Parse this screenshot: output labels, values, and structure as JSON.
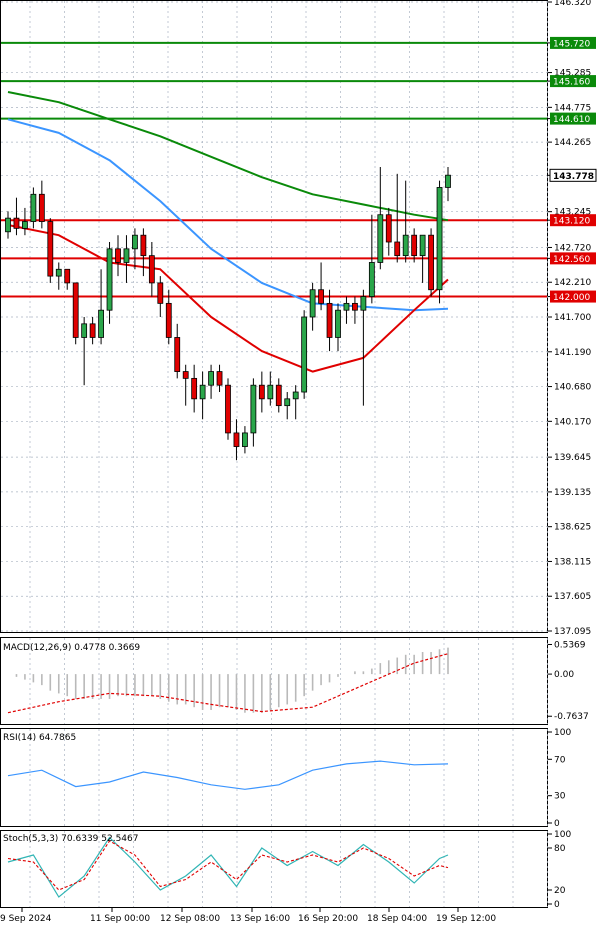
{
  "chart_data": {
    "type": "candlestick",
    "price_axis": {
      "ylim": [
        137.095,
        146.32
      ],
      "ticks": [
        "146.320",
        "145.720",
        "145.285",
        "145.160",
        "144.775",
        "144.610",
        "144.265",
        "143.778",
        "143.245",
        "143.120",
        "142.720",
        "142.560",
        "142.210",
        "142.000",
        "141.700",
        "141.190",
        "140.680",
        "140.170",
        "139.645",
        "139.135",
        "138.625",
        "138.115",
        "137.605",
        "137.095"
      ]
    },
    "time_labels": [
      "9 Sep 2024",
      "11 Sep 00:00",
      "12 Sep 08:00",
      "13 Sep 16:00",
      "16 Sep 20:00",
      "18 Sep 04:00",
      "19 Sep 12:00"
    ],
    "levels": [
      {
        "value": 145.72,
        "label": "145.720",
        "color": "#0a8a0a"
      },
      {
        "value": 145.16,
        "label": "145.160",
        "color": "#0a8a0a"
      },
      {
        "value": 144.61,
        "label": "144.610",
        "color": "#0a8a0a"
      },
      {
        "value": 143.12,
        "label": "143.120",
        "color": "#e00000"
      },
      {
        "value": 142.56,
        "label": "142.560",
        "color": "#e00000"
      },
      {
        "value": 142.0,
        "label": "142.000",
        "color": "#e00000"
      }
    ],
    "last_price": {
      "value": 143.778,
      "label": "143.778"
    },
    "candles": [
      {
        "o": 142.95,
        "h": 143.25,
        "l": 142.85,
        "c": 143.15
      },
      {
        "o": 143.15,
        "h": 143.45,
        "l": 142.9,
        "c": 143.0
      },
      {
        "o": 143.0,
        "h": 143.3,
        "l": 142.9,
        "c": 143.1
      },
      {
        "o": 143.1,
        "h": 143.6,
        "l": 143.0,
        "c": 143.5
      },
      {
        "o": 143.5,
        "h": 143.7,
        "l": 143.0,
        "c": 143.1
      },
      {
        "o": 143.1,
        "h": 143.15,
        "l": 142.2,
        "c": 142.3
      },
      {
        "o": 142.3,
        "h": 142.5,
        "l": 142.1,
        "c": 142.4
      },
      {
        "o": 142.4,
        "h": 142.4,
        "l": 142.1,
        "c": 142.2
      },
      {
        "o": 142.2,
        "h": 142.2,
        "l": 141.3,
        "c": 141.4
      },
      {
        "o": 141.4,
        "h": 141.7,
        "l": 140.7,
        "c": 141.6
      },
      {
        "o": 141.6,
        "h": 141.7,
        "l": 141.3,
        "c": 141.4
      },
      {
        "o": 141.4,
        "h": 142.4,
        "l": 141.3,
        "c": 141.8
      },
      {
        "o": 141.8,
        "h": 142.8,
        "l": 141.6,
        "c": 142.7
      },
      {
        "o": 142.7,
        "h": 142.9,
        "l": 142.3,
        "c": 142.5
      },
      {
        "o": 142.5,
        "h": 142.9,
        "l": 142.2,
        "c": 142.7
      },
      {
        "o": 142.7,
        "h": 143.0,
        "l": 142.4,
        "c": 142.9
      },
      {
        "o": 142.9,
        "h": 143.0,
        "l": 142.3,
        "c": 142.6
      },
      {
        "o": 142.6,
        "h": 142.8,
        "l": 142.0,
        "c": 142.2
      },
      {
        "o": 142.2,
        "h": 142.3,
        "l": 141.7,
        "c": 141.9
      },
      {
        "o": 141.9,
        "h": 142.1,
        "l": 141.3,
        "c": 141.4
      },
      {
        "o": 141.4,
        "h": 141.6,
        "l": 140.8,
        "c": 140.9
      },
      {
        "o": 140.9,
        "h": 141.0,
        "l": 140.4,
        "c": 140.8
      },
      {
        "o": 140.8,
        "h": 141.0,
        "l": 140.3,
        "c": 140.5
      },
      {
        "o": 140.5,
        "h": 140.9,
        "l": 140.2,
        "c": 140.7
      },
      {
        "o": 140.7,
        "h": 141.0,
        "l": 140.5,
        "c": 140.9
      },
      {
        "o": 140.9,
        "h": 141.0,
        "l": 140.6,
        "c": 140.7
      },
      {
        "o": 140.7,
        "h": 140.8,
        "l": 139.9,
        "c": 140.0
      },
      {
        "o": 140.0,
        "h": 140.2,
        "l": 139.6,
        "c": 139.8
      },
      {
        "o": 139.8,
        "h": 140.1,
        "l": 139.7,
        "c": 140.0
      },
      {
        "o": 140.0,
        "h": 140.8,
        "l": 139.8,
        "c": 140.7
      },
      {
        "o": 140.7,
        "h": 140.9,
        "l": 140.3,
        "c": 140.5
      },
      {
        "o": 140.5,
        "h": 140.9,
        "l": 140.4,
        "c": 140.7
      },
      {
        "o": 140.7,
        "h": 140.8,
        "l": 140.3,
        "c": 140.4
      },
      {
        "o": 140.4,
        "h": 140.6,
        "l": 140.2,
        "c": 140.5
      },
      {
        "o": 140.5,
        "h": 140.7,
        "l": 140.2,
        "c": 140.6
      },
      {
        "o": 140.6,
        "h": 141.8,
        "l": 140.5,
        "c": 141.7
      },
      {
        "o": 141.7,
        "h": 142.2,
        "l": 141.5,
        "c": 142.1
      },
      {
        "o": 142.1,
        "h": 142.5,
        "l": 141.8,
        "c": 141.9
      },
      {
        "o": 141.9,
        "h": 142.1,
        "l": 141.2,
        "c": 141.4
      },
      {
        "o": 141.4,
        "h": 141.9,
        "l": 141.2,
        "c": 141.8
      },
      {
        "o": 141.8,
        "h": 142.0,
        "l": 141.6,
        "c": 141.9
      },
      {
        "o": 141.9,
        "h": 142.0,
        "l": 141.6,
        "c": 141.8
      },
      {
        "o": 141.8,
        "h": 142.1,
        "l": 140.4,
        "c": 142.0
      },
      {
        "o": 142.0,
        "h": 143.2,
        "l": 141.9,
        "c": 142.5
      },
      {
        "o": 142.5,
        "h": 143.9,
        "l": 142.4,
        "c": 143.2
      },
      {
        "o": 143.2,
        "h": 143.3,
        "l": 142.6,
        "c": 142.8
      },
      {
        "o": 142.8,
        "h": 143.8,
        "l": 142.5,
        "c": 142.6
      },
      {
        "o": 142.6,
        "h": 143.7,
        "l": 142.5,
        "c": 142.9
      },
      {
        "o": 142.9,
        "h": 143.0,
        "l": 142.5,
        "c": 142.6
      },
      {
        "o": 142.6,
        "h": 142.9,
        "l": 142.2,
        "c": 142.9
      },
      {
        "o": 142.9,
        "h": 143.0,
        "l": 142.0,
        "c": 142.1
      },
      {
        "o": 142.1,
        "h": 143.7,
        "l": 141.9,
        "c": 143.6
      },
      {
        "o": 143.6,
        "h": 143.9,
        "l": 143.4,
        "c": 143.78
      }
    ],
    "ma_series": [
      {
        "color": "#0a8a0a",
        "x": [
          0,
          6,
          12,
          18,
          24,
          30,
          36,
          42,
          48,
          52
        ],
        "values": [
          145.0,
          144.85,
          144.6,
          144.35,
          144.05,
          143.75,
          143.5,
          143.35,
          143.2,
          143.12
        ]
      },
      {
        "color": "#3b95ff",
        "x": [
          0,
          6,
          12,
          18,
          24,
          30,
          36,
          42,
          48,
          52
        ],
        "values": [
          144.6,
          144.4,
          144.0,
          143.4,
          142.7,
          142.2,
          141.9,
          141.85,
          141.8,
          141.82
        ]
      },
      {
        "color": "#e00000",
        "x": [
          0,
          6,
          12,
          18,
          24,
          30,
          36,
          42,
          48,
          52
        ],
        "values": [
          143.05,
          142.9,
          142.5,
          142.4,
          141.7,
          141.2,
          140.9,
          141.1,
          141.8,
          142.25
        ]
      }
    ],
    "macd": {
      "label": "MACD(12,26,9) 0.4778 0.3669",
      "ylim": [
        -0.85,
        0.6
      ],
      "ticks": [
        "0.5369",
        "0.00",
        "-0.7637"
      ],
      "histogram": [
        0.0,
        -0.05,
        -0.1,
        -0.15,
        -0.2,
        -0.3,
        -0.35,
        -0.4,
        -0.45,
        -0.45,
        -0.45,
        -0.45,
        -0.45,
        -0.4,
        -0.4,
        -0.4,
        -0.4,
        -0.4,
        -0.45,
        -0.5,
        -0.55,
        -0.55,
        -0.6,
        -0.65,
        -0.65,
        -0.6,
        -0.6,
        -0.65,
        -0.7,
        -0.7,
        -0.7,
        -0.65,
        -0.6,
        -0.55,
        -0.5,
        -0.4,
        -0.3,
        -0.2,
        -0.15,
        -0.05,
        0.0,
        0.05,
        0.05,
        0.1,
        0.2,
        0.25,
        0.3,
        0.35,
        0.35,
        0.4,
        0.4,
        0.45,
        0.48
      ],
      "signal": {
        "x": [
          0,
          6,
          12,
          18,
          24,
          30,
          36,
          42,
          48,
          52
        ],
        "values": [
          -0.7,
          -0.5,
          -0.35,
          -0.4,
          -0.55,
          -0.68,
          -0.6,
          -0.2,
          0.2,
          0.37
        ]
      }
    },
    "rsi": {
      "label": "RSI(14) 64.7865",
      "ylim": [
        0,
        100
      ],
      "ticks": [
        "100",
        "70",
        "30",
        "0"
      ],
      "line": {
        "x": [
          0,
          4,
          8,
          12,
          16,
          20,
          24,
          28,
          32,
          36,
          40,
          44,
          48,
          52
        ],
        "values": [
          52,
          58,
          40,
          45,
          56,
          50,
          42,
          37,
          42,
          58,
          65,
          68,
          64,
          65
        ]
      }
    },
    "stoch": {
      "label": "Stoch(5,3,3) 70.6339 52.5467",
      "ylim": [
        0,
        100
      ],
      "ticks": [
        "100",
        "80",
        "20",
        "0"
      ],
      "main": {
        "x": [
          0,
          3,
          6,
          9,
          12,
          15,
          18,
          21,
          24,
          27,
          30,
          33,
          36,
          39,
          42,
          45,
          48,
          51,
          52
        ],
        "values": [
          60,
          70,
          10,
          40,
          95,
          60,
          20,
          40,
          70,
          25,
          80,
          55,
          75,
          55,
          85,
          60,
          30,
          65,
          70
        ]
      },
      "signal": {
        "x": [
          0,
          3,
          6,
          9,
          12,
          15,
          18,
          21,
          24,
          27,
          30,
          33,
          36,
          39,
          42,
          45,
          48,
          51,
          52
        ],
        "values": [
          65,
          60,
          20,
          35,
          90,
          70,
          25,
          35,
          60,
          35,
          70,
          60,
          70,
          60,
          80,
          65,
          40,
          55,
          52
        ]
      }
    }
  }
}
